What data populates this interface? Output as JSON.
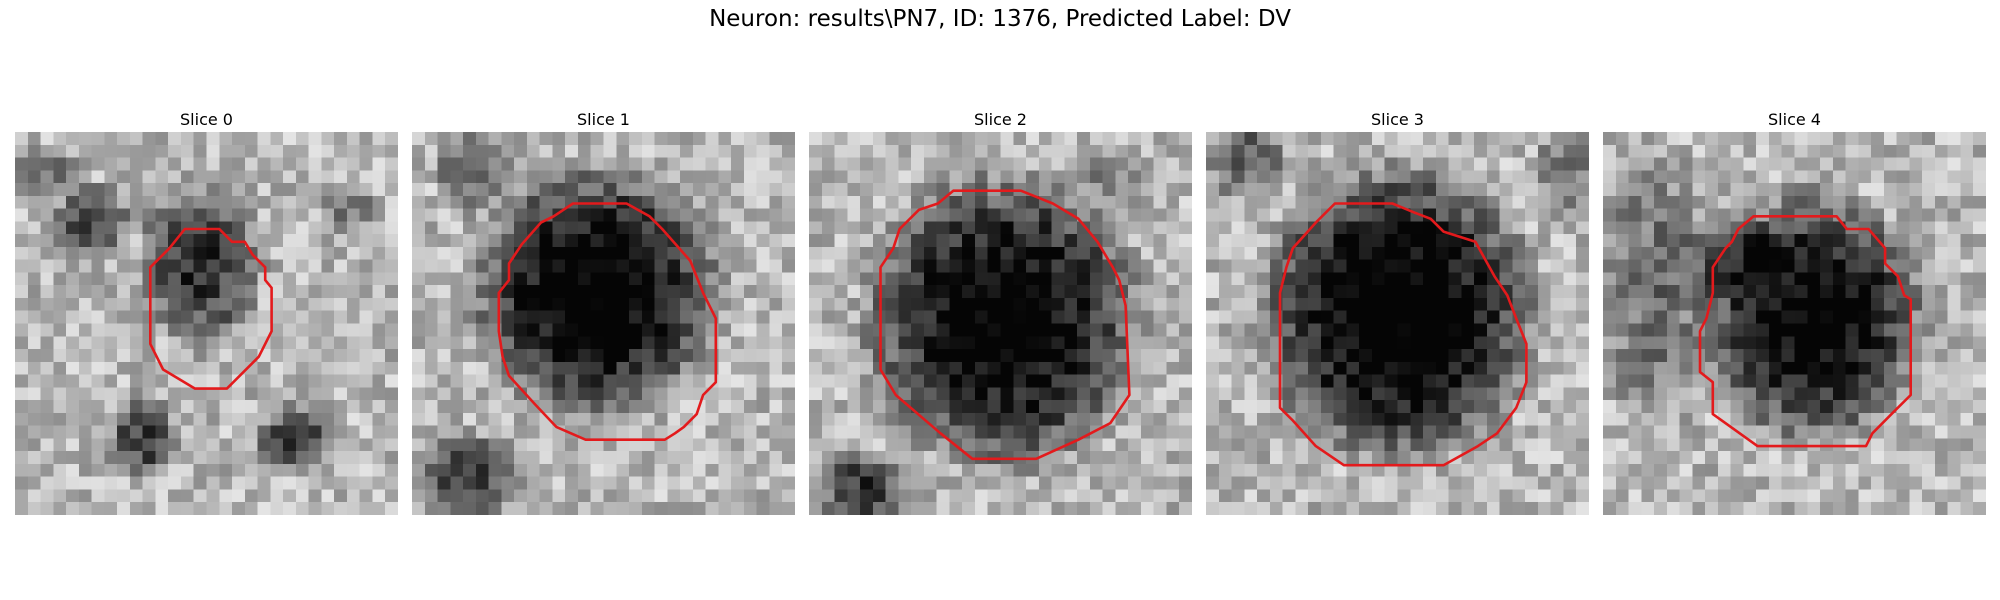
{
  "figure": {
    "title": "Neuron: results\\PN7, ID: 1376, Predicted Label: DV"
  },
  "contour_color": "#e31a1c",
  "colormap": "gray",
  "panels": [
    {
      "title": "Slice 0"
    },
    {
      "title": "Slice 1"
    },
    {
      "title": "Slice 2"
    },
    {
      "title": "Slice 3"
    },
    {
      "title": "Slice 4"
    }
  ]
}
